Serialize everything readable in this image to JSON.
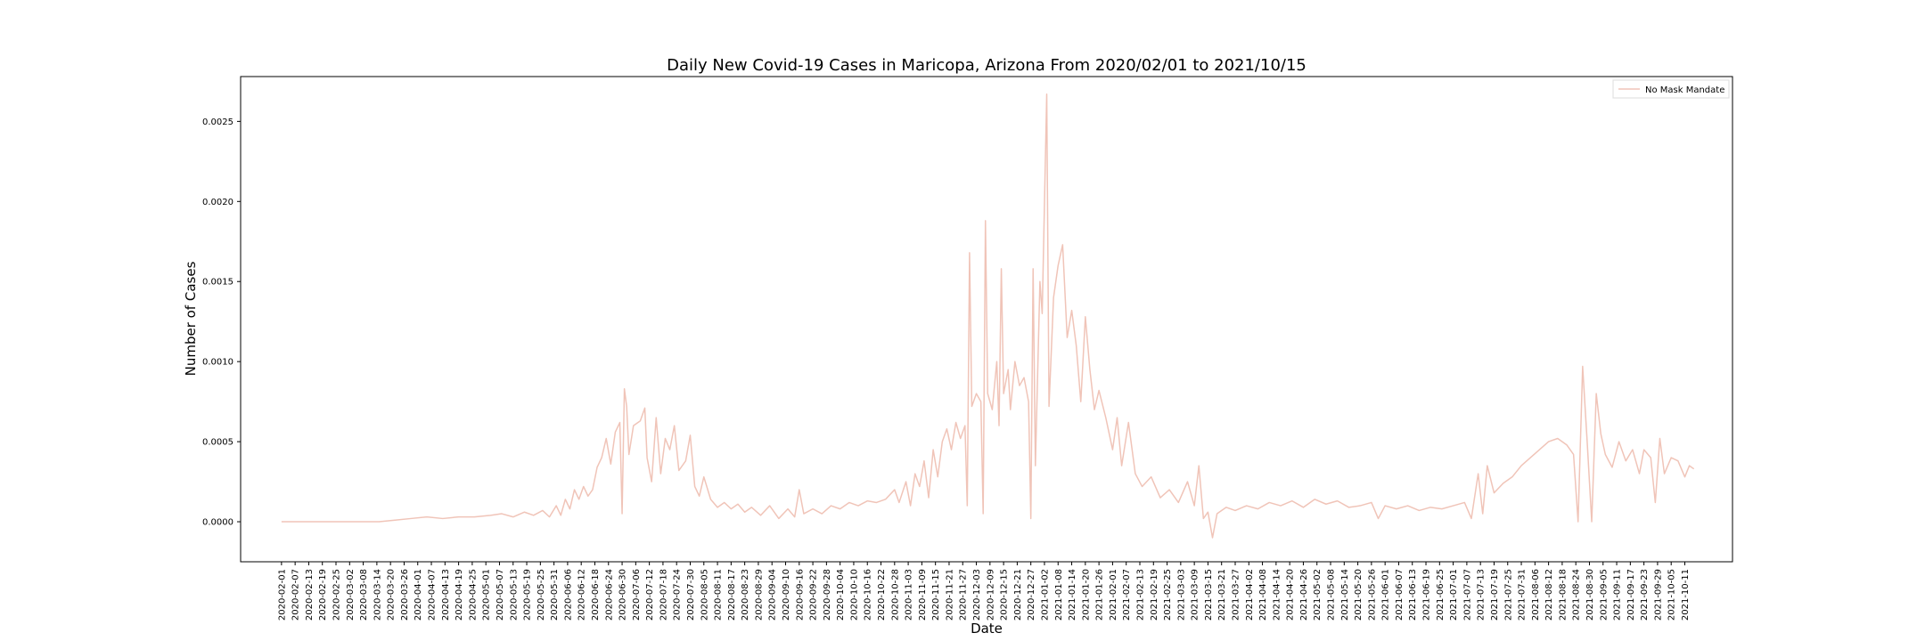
{
  "chart_data": {
    "type": "line",
    "title": "Daily New Covid-19 Cases in Maricopa, Arizona From 2020/02/01 to 2021/10/15",
    "xlabel": "Date",
    "ylabel": "Number of Cases",
    "x_start": "2020-02-01",
    "x_end": "2021-10-15",
    "xlim": [
      "2020-01-14",
      "2021-11-01"
    ],
    "ylim": [
      -0.00025,
      0.00278
    ],
    "yticks": [
      0.0,
      0.0005,
      0.001,
      0.0015,
      0.002,
      0.0025
    ],
    "ytick_labels": [
      "0.0000",
      "0.0005",
      "0.0010",
      "0.0015",
      "0.0020",
      "0.0025"
    ],
    "xtick_labels": [
      "2020-02-01",
      "2020-02-07",
      "2020-02-13",
      "2020-02-19",
      "2020-02-25",
      "2020-03-02",
      "2020-03-08",
      "2020-03-14",
      "2020-03-20",
      "2020-03-26",
      "2020-04-01",
      "2020-04-07",
      "2020-04-13",
      "2020-04-19",
      "2020-04-25",
      "2020-05-01",
      "2020-05-07",
      "2020-05-13",
      "2020-05-19",
      "2020-05-25",
      "2020-05-31",
      "2020-06-06",
      "2020-06-12",
      "2020-06-18",
      "2020-06-24",
      "2020-06-30",
      "2020-07-06",
      "2020-07-12",
      "2020-07-18",
      "2020-07-24",
      "2020-07-30",
      "2020-08-05",
      "2020-08-11",
      "2020-08-17",
      "2020-08-23",
      "2020-08-29",
      "2020-09-04",
      "2020-09-10",
      "2020-09-16",
      "2020-09-22",
      "2020-09-28",
      "2020-10-04",
      "2020-10-10",
      "2020-10-16",
      "2020-10-22",
      "2020-10-28",
      "2020-11-03",
      "2020-11-09",
      "2020-11-15",
      "2020-11-21",
      "2020-11-27",
      "2020-12-03",
      "2020-12-09",
      "2020-12-15",
      "2020-12-21",
      "2020-12-27",
      "2021-01-02",
      "2021-01-08",
      "2021-01-14",
      "2021-01-20",
      "2021-01-26",
      "2021-02-01",
      "2021-02-07",
      "2021-02-13",
      "2021-02-19",
      "2021-02-25",
      "2021-03-03",
      "2021-03-09",
      "2021-03-15",
      "2021-03-21",
      "2021-03-27",
      "2021-04-02",
      "2021-04-08",
      "2021-04-14",
      "2021-04-20",
      "2021-04-26",
      "2021-05-02",
      "2021-05-08",
      "2021-05-14",
      "2021-05-20",
      "2021-05-26",
      "2021-06-01",
      "2021-06-07",
      "2021-06-13",
      "2021-06-19",
      "2021-06-25",
      "2021-07-01",
      "2021-07-07",
      "2021-07-13",
      "2021-07-19",
      "2021-07-25",
      "2021-07-31",
      "2021-08-06",
      "2021-08-12",
      "2021-08-18",
      "2021-08-24",
      "2021-08-30",
      "2021-09-05",
      "2021-09-11",
      "2021-09-17",
      "2021-09-23",
      "2021-09-29",
      "2021-10-05",
      "2021-10-11"
    ],
    "legend": "top-right",
    "grid": false,
    "series": [
      {
        "name": "No Mask Mandate",
        "color": "#f0c4b8",
        "points": [
          [
            "2020-02-01",
            0.0
          ],
          [
            "2020-02-15",
            0.0
          ],
          [
            "2020-03-01",
            0.0
          ],
          [
            "2020-03-15",
            0.0
          ],
          [
            "2020-03-22",
            1e-05
          ],
          [
            "2020-03-29",
            2e-05
          ],
          [
            "2020-04-05",
            3e-05
          ],
          [
            "2020-04-12",
            2e-05
          ],
          [
            "2020-04-19",
            3e-05
          ],
          [
            "2020-04-26",
            3e-05
          ],
          [
            "2020-05-03",
            4e-05
          ],
          [
            "2020-05-08",
            5e-05
          ],
          [
            "2020-05-13",
            3e-05
          ],
          [
            "2020-05-18",
            6e-05
          ],
          [
            "2020-05-22",
            4e-05
          ],
          [
            "2020-05-26",
            7e-05
          ],
          [
            "2020-05-29",
            3e-05
          ],
          [
            "2020-06-01",
            0.0001
          ],
          [
            "2020-06-03",
            4e-05
          ],
          [
            "2020-06-05",
            0.00014
          ],
          [
            "2020-06-07",
            8e-05
          ],
          [
            "2020-06-09",
            0.0002
          ],
          [
            "2020-06-11",
            0.00014
          ],
          [
            "2020-06-13",
            0.00022
          ],
          [
            "2020-06-15",
            0.00016
          ],
          [
            "2020-06-17",
            0.0002
          ],
          [
            "2020-06-19",
            0.00034
          ],
          [
            "2020-06-21",
            0.0004
          ],
          [
            "2020-06-23",
            0.00052
          ],
          [
            "2020-06-25",
            0.00036
          ],
          [
            "2020-06-27",
            0.00056
          ],
          [
            "2020-06-29",
            0.00062
          ],
          [
            "2020-06-30",
            5e-05
          ],
          [
            "2020-07-01",
            0.00083
          ],
          [
            "2020-07-02",
            0.00072
          ],
          [
            "2020-07-03",
            0.00042
          ],
          [
            "2020-07-05",
            0.0006
          ],
          [
            "2020-07-08",
            0.00063
          ],
          [
            "2020-07-10",
            0.00071
          ],
          [
            "2020-07-11",
            0.0004
          ],
          [
            "2020-07-13",
            0.00025
          ],
          [
            "2020-07-15",
            0.00065
          ],
          [
            "2020-07-17",
            0.0003
          ],
          [
            "2020-07-19",
            0.00052
          ],
          [
            "2020-07-21",
            0.00045
          ],
          [
            "2020-07-23",
            0.0006
          ],
          [
            "2020-07-25",
            0.00032
          ],
          [
            "2020-07-28",
            0.00038
          ],
          [
            "2020-07-30",
            0.00054
          ],
          [
            "2020-08-01",
            0.00022
          ],
          [
            "2020-08-03",
            0.00016
          ],
          [
            "2020-08-05",
            0.00028
          ],
          [
            "2020-08-08",
            0.00014
          ],
          [
            "2020-08-11",
            9e-05
          ],
          [
            "2020-08-14",
            0.00012
          ],
          [
            "2020-08-17",
            8e-05
          ],
          [
            "2020-08-20",
            0.00011
          ],
          [
            "2020-08-23",
            6e-05
          ],
          [
            "2020-08-26",
            9e-05
          ],
          [
            "2020-08-30",
            4e-05
          ],
          [
            "2020-09-03",
            0.0001
          ],
          [
            "2020-09-07",
            2e-05
          ],
          [
            "2020-09-11",
            8e-05
          ],
          [
            "2020-09-14",
            3e-05
          ],
          [
            "2020-09-16",
            0.0002
          ],
          [
            "2020-09-18",
            5e-05
          ],
          [
            "2020-09-22",
            8e-05
          ],
          [
            "2020-09-26",
            5e-05
          ],
          [
            "2020-09-30",
            0.0001
          ],
          [
            "2020-10-04",
            8e-05
          ],
          [
            "2020-10-08",
            0.00012
          ],
          [
            "2020-10-12",
            0.0001
          ],
          [
            "2020-10-16",
            0.00013
          ],
          [
            "2020-10-20",
            0.00012
          ],
          [
            "2020-10-24",
            0.00014
          ],
          [
            "2020-10-28",
            0.0002
          ],
          [
            "2020-10-30",
            0.00012
          ],
          [
            "2020-11-02",
            0.00025
          ],
          [
            "2020-11-04",
            0.0001
          ],
          [
            "2020-11-06",
            0.0003
          ],
          [
            "2020-11-08",
            0.00022
          ],
          [
            "2020-11-10",
            0.00038
          ],
          [
            "2020-11-12",
            0.00015
          ],
          [
            "2020-11-14",
            0.00045
          ],
          [
            "2020-11-16",
            0.00028
          ],
          [
            "2020-11-18",
            0.0005
          ],
          [
            "2020-11-20",
            0.00058
          ],
          [
            "2020-11-22",
            0.00045
          ],
          [
            "2020-11-24",
            0.00062
          ],
          [
            "2020-11-26",
            0.00052
          ],
          [
            "2020-11-28",
            0.0006
          ],
          [
            "2020-11-29",
            0.0001
          ],
          [
            "2020-11-30",
            0.00168
          ],
          [
            "2020-12-01",
            0.00072
          ],
          [
            "2020-12-03",
            0.0008
          ],
          [
            "2020-12-05",
            0.00075
          ],
          [
            "2020-12-06",
            5e-05
          ],
          [
            "2020-12-07",
            0.00188
          ],
          [
            "2020-12-08",
            0.0008
          ],
          [
            "2020-12-10",
            0.0007
          ],
          [
            "2020-12-12",
            0.001
          ],
          [
            "2020-12-13",
            0.0006
          ],
          [
            "2020-12-14",
            0.00158
          ],
          [
            "2020-12-15",
            0.0008
          ],
          [
            "2020-12-17",
            0.00095
          ],
          [
            "2020-12-18",
            0.0007
          ],
          [
            "2020-12-20",
            0.001
          ],
          [
            "2020-12-22",
            0.00085
          ],
          [
            "2020-12-24",
            0.0009
          ],
          [
            "2020-12-26",
            0.00075
          ],
          [
            "2020-12-27",
            2e-05
          ],
          [
            "2020-12-28",
            0.00158
          ],
          [
            "2020-12-29",
            0.00035
          ],
          [
            "2020-12-31",
            0.0015
          ],
          [
            "2021-01-01",
            0.0013
          ],
          [
            "2021-01-03",
            0.00267
          ],
          [
            "2021-01-04",
            0.00072
          ],
          [
            "2021-01-06",
            0.0014
          ],
          [
            "2021-01-08",
            0.0016
          ],
          [
            "2021-01-10",
            0.00173
          ],
          [
            "2021-01-12",
            0.00115
          ],
          [
            "2021-01-14",
            0.00132
          ],
          [
            "2021-01-16",
            0.0011
          ],
          [
            "2021-01-18",
            0.00075
          ],
          [
            "2021-01-20",
            0.00128
          ],
          [
            "2021-01-22",
            0.00095
          ],
          [
            "2021-01-24",
            0.0007
          ],
          [
            "2021-01-26",
            0.00082
          ],
          [
            "2021-01-29",
            0.00065
          ],
          [
            "2021-02-01",
            0.00045
          ],
          [
            "2021-02-03",
            0.00065
          ],
          [
            "2021-02-05",
            0.00035
          ],
          [
            "2021-02-08",
            0.00062
          ],
          [
            "2021-02-11",
            0.0003
          ],
          [
            "2021-02-14",
            0.00022
          ],
          [
            "2021-02-18",
            0.00028
          ],
          [
            "2021-02-22",
            0.00015
          ],
          [
            "2021-02-26",
            0.0002
          ],
          [
            "2021-03-02",
            0.00012
          ],
          [
            "2021-03-06",
            0.00025
          ],
          [
            "2021-03-09",
            0.0001
          ],
          [
            "2021-03-11",
            0.00035
          ],
          [
            "2021-03-13",
            2e-05
          ],
          [
            "2021-03-15",
            6e-05
          ],
          [
            "2021-03-17",
            -0.0001
          ],
          [
            "2021-03-19",
            5e-05
          ],
          [
            "2021-03-23",
            9e-05
          ],
          [
            "2021-03-27",
            7e-05
          ],
          [
            "2021-04-01",
            0.0001
          ],
          [
            "2021-04-06",
            8e-05
          ],
          [
            "2021-04-11",
            0.00012
          ],
          [
            "2021-04-16",
            0.0001
          ],
          [
            "2021-04-21",
            0.00013
          ],
          [
            "2021-04-26",
            9e-05
          ],
          [
            "2021-05-01",
            0.00014
          ],
          [
            "2021-05-06",
            0.00011
          ],
          [
            "2021-05-11",
            0.00013
          ],
          [
            "2021-05-16",
            9e-05
          ],
          [
            "2021-05-21",
            0.0001
          ],
          [
            "2021-05-26",
            0.00012
          ],
          [
            "2021-05-29",
            2e-05
          ],
          [
            "2021-06-01",
            0.0001
          ],
          [
            "2021-06-06",
            8e-05
          ],
          [
            "2021-06-11",
            0.0001
          ],
          [
            "2021-06-16",
            7e-05
          ],
          [
            "2021-06-21",
            9e-05
          ],
          [
            "2021-06-26",
            8e-05
          ],
          [
            "2021-07-01",
            0.0001
          ],
          [
            "2021-07-06",
            0.00012
          ],
          [
            "2021-07-09",
            2e-05
          ],
          [
            "2021-07-12",
            0.0003
          ],
          [
            "2021-07-14",
            5e-05
          ],
          [
            "2021-07-16",
            0.00035
          ],
          [
            "2021-07-19",
            0.00018
          ],
          [
            "2021-07-23",
            0.00024
          ],
          [
            "2021-07-27",
            0.00028
          ],
          [
            "2021-07-31",
            0.00035
          ],
          [
            "2021-08-04",
            0.0004
          ],
          [
            "2021-08-08",
            0.00045
          ],
          [
            "2021-08-12",
            0.0005
          ],
          [
            "2021-08-16",
            0.00052
          ],
          [
            "2021-08-20",
            0.00048
          ],
          [
            "2021-08-23",
            0.00042
          ],
          [
            "2021-08-25",
            0.0
          ],
          [
            "2021-08-27",
            0.00097
          ],
          [
            "2021-08-29",
            0.0005
          ],
          [
            "2021-08-31",
            0.0
          ],
          [
            "2021-09-02",
            0.0008
          ],
          [
            "2021-09-04",
            0.00055
          ],
          [
            "2021-09-06",
            0.00042
          ],
          [
            "2021-09-09",
            0.00034
          ],
          [
            "2021-09-12",
            0.0005
          ],
          [
            "2021-09-15",
            0.00038
          ],
          [
            "2021-09-18",
            0.00045
          ],
          [
            "2021-09-21",
            0.0003
          ],
          [
            "2021-09-23",
            0.00045
          ],
          [
            "2021-09-26",
            0.0004
          ],
          [
            "2021-09-28",
            0.00012
          ],
          [
            "2021-09-30",
            0.00052
          ],
          [
            "2021-10-02",
            0.0003
          ],
          [
            "2021-10-05",
            0.0004
          ],
          [
            "2021-10-08",
            0.00038
          ],
          [
            "2021-10-11",
            0.00028
          ],
          [
            "2021-10-13",
            0.00035
          ],
          [
            "2021-10-15",
            0.00033
          ]
        ]
      }
    ]
  }
}
